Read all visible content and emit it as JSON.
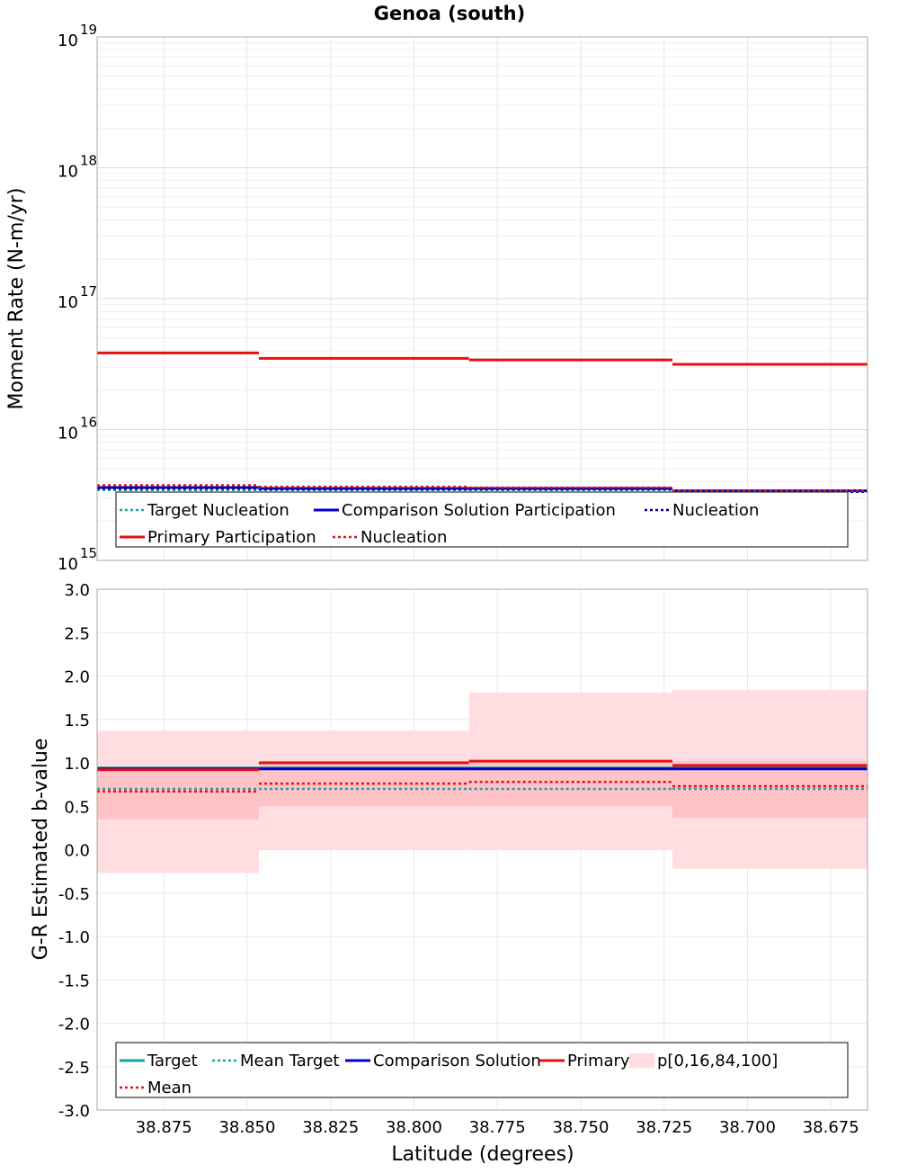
{
  "title": "Genoa (south)",
  "colors": {
    "target": "#1aa3a3",
    "mean_target": "#1aa3a3",
    "comparison": "#0000c8",
    "comparison_nucleation": "#00009a",
    "primary": "#e61010",
    "primary_mean": "#e61010",
    "band_outer": "#ffdde0",
    "band_inner": "#ffc2c6",
    "grid": "#e8e8e8"
  },
  "x_axis": {
    "label": "Latitude (degrees)",
    "range": [
      38.895,
      38.664
    ],
    "ticks": [
      "38.875",
      "38.850",
      "38.825",
      "38.800",
      "38.775",
      "38.750",
      "38.725",
      "38.700",
      "38.675"
    ]
  },
  "chart_data": [
    {
      "type": "line",
      "title": "Genoa (south)",
      "ylabel": "Moment Rate (N-m/yr)",
      "yscale": "log",
      "ylim": [
        1000000000000000.0,
        1e+19
      ],
      "ytick_bases": [
        "10",
        "10",
        "10",
        "10",
        "10"
      ],
      "ytick_exponents": [
        "15",
        "16",
        "17",
        "18",
        "19"
      ],
      "section_edges": [
        38.895,
        38.8465,
        38.7835,
        38.7225,
        38.664
      ],
      "series": [
        {
          "key": "target_nucleation",
          "values": [
            3450000000000000.0,
            3450000000000000.0,
            3450000000000000.0,
            3350000000000000.0
          ],
          "style": "dotted"
        },
        {
          "key": "comparison_participation",
          "values": [
            3600000000000000.0,
            3550000000000000.0,
            3550000000000000.0,
            3400000000000000.0
          ],
          "style": "solid"
        },
        {
          "key": "comparison_nucleation",
          "values": [
            3550000000000000.0,
            3500000000000000.0,
            3500000000000000.0,
            3350000000000000.0
          ],
          "style": "dotted"
        },
        {
          "key": "primary_participation",
          "values": [
            3.85e+16,
            3.5e+16,
            3.4e+16,
            3.15e+16
          ],
          "style": "solid"
        },
        {
          "key": "primary_nucleation",
          "values": [
            3750000000000000.0,
            3650000000000000.0,
            3600000000000000.0,
            3400000000000000.0
          ],
          "style": "dotted"
        }
      ],
      "legend": {
        "placement": "bottom",
        "rows": [
          [
            "Target Nucleation",
            "Comparison Solution Participation",
            "Nucleation"
          ],
          [
            "Primary Participation",
            "Nucleation"
          ]
        ]
      }
    },
    {
      "type": "line",
      "xlabel": "Latitude (degrees)",
      "ylabel": "G-R Estimated b-value",
      "ylim": [
        -3.0,
        3.0
      ],
      "yticks": [
        "-3.0",
        "-2.5",
        "-2.0",
        "-1.5",
        "-1.0",
        "-0.5",
        "0.0",
        "0.5",
        "1.0",
        "1.5",
        "2.0",
        "2.5",
        "3.0"
      ],
      "section_edges": [
        38.895,
        38.8465,
        38.7835,
        38.7225,
        38.664
      ],
      "series": [
        {
          "key": "target",
          "values": [
            0.94,
            0.94,
            0.94,
            0.94
          ],
          "style": "solid"
        },
        {
          "key": "mean_target",
          "values": [
            0.7,
            0.7,
            0.7,
            0.7
          ],
          "style": "dotted"
        },
        {
          "key": "comparison",
          "values": [
            0.93,
            0.93,
            0.93,
            0.93
          ],
          "style": "solid"
        },
        {
          "key": "primary",
          "values": [
            0.92,
            1.0,
            1.02,
            0.97
          ],
          "style": "solid"
        },
        {
          "key": "mean",
          "values": [
            0.67,
            0.76,
            0.78,
            0.73
          ],
          "style": "dotted"
        }
      ],
      "percentile_band": {
        "p0": [
          -0.27,
          0.0,
          0.0,
          -0.22
        ],
        "p16": [
          0.35,
          0.5,
          0.5,
          0.37
        ],
        "p84": [
          0.92,
          1.02,
          1.02,
          1.02
        ],
        "p100": [
          1.37,
          1.37,
          1.81,
          1.84
        ]
      },
      "legend": {
        "placement": "bottom",
        "rows": [
          [
            "Target",
            "Mean Target",
            "Comparison Solution",
            "Primary",
            "p[0,16,84,100]"
          ],
          [
            "Mean"
          ]
        ]
      }
    }
  ]
}
